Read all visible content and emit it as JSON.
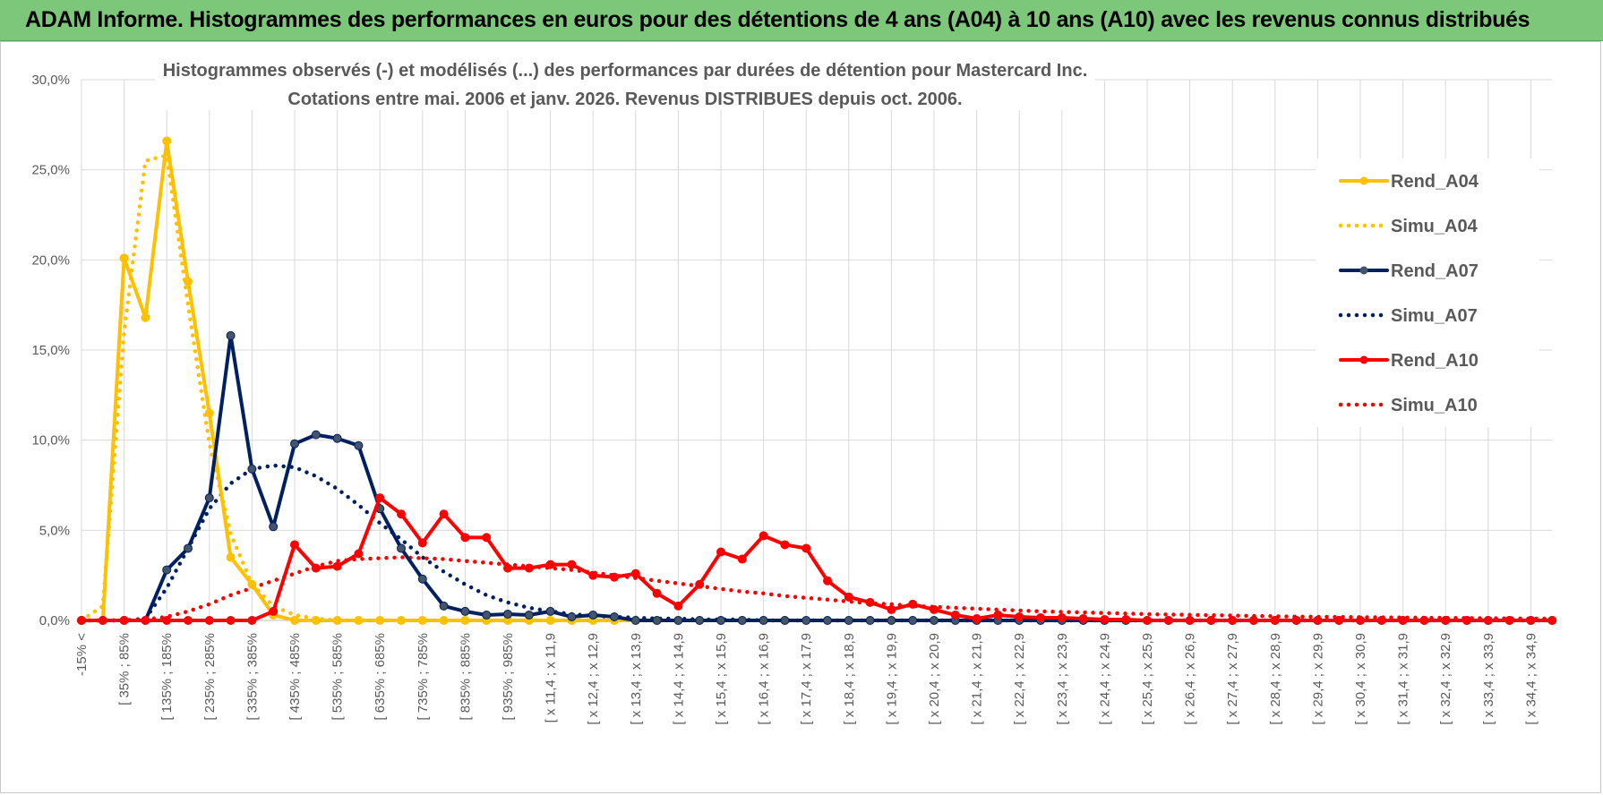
{
  "header": {
    "title": "ADAM Informe. Histogrammes des performances en euros pour des détentions de 4 ans (A04) à 10 ans (A10) avec les revenus connus distribués"
  },
  "chart_data": {
    "type": "line",
    "title_line1": "Histogrammes observés (-) et modélisés (...) des performances par durées de détention pour Mastercard Inc.",
    "title_line2": "Cotations entre mai. 2006 et janv. 2026. Revenus DISTRIBUES depuis oct. 2006.",
    "ylim": [
      0,
      30
    ],
    "y_ticks": [
      "0,0%",
      "5,0%",
      "10,0%",
      "15,0%",
      "20,0%",
      "25,0%",
      "30,0%"
    ],
    "y_tick_values": [
      0,
      5,
      10,
      15,
      20,
      25,
      30
    ],
    "legend_position": "right",
    "x_tick_labels": [
      "-15% <",
      "[ 35% ; 85%",
      "[ 135% ; 185%",
      "[ 235% ; 285%",
      "[ 335% ; 385%",
      "[ 435% ; 485%",
      "[ 535% ; 585%",
      "[ 635% ; 685%",
      "[ 735% ; 785%",
      "[ 835% ; 885%",
      "[ 935% ; 985%",
      "[ x 11,4 ; x 11,9",
      "[ x 12,4 ; x 12,9",
      "[ x 13,4 ; x 13,9",
      "[ x 14,4 ; x 14,9",
      "[ x 15,4 ; x 15,9",
      "[ x 16,4 ; x 16,9",
      "[ x 17,4 ; x 17,9",
      "[ x 18,4 ; x 18,9",
      "[ x 19,4 ; x 19,9",
      "[ x 20,4 ; x 20,9",
      "[ x 21,4 ; x 21,9",
      "[ x 22,4 ; x 22,9",
      "[ x 23,4 ; x 23,9",
      "[ x 24,4 ; x 24,9",
      "[ x 25,4 ; x 25,9",
      "[ x 26,4 ; x 26,9",
      "[ x 27,4 ; x 27,9",
      "[ x 28,4 ; x 28,9",
      "[ x 29,4 ; x 29,9",
      "[ x 30,4 ; x 30,9",
      "[ x 31,4 ; x 31,9",
      "[ x 32,4 ; x 32,9",
      "[ x 33,4 ; x 33,9",
      "[ x 34,4 ; x 34,9"
    ],
    "n_points": 70,
    "series": [
      {
        "name": "Rend_A04",
        "color": "#ffc000",
        "style": "solid",
        "values": [
          0,
          0,
          20.1,
          16.8,
          26.6,
          18.8,
          11.5,
          3.5,
          2.0,
          0.3,
          0,
          0,
          0,
          0,
          0,
          0,
          0,
          0,
          0,
          0,
          0,
          0,
          0,
          0,
          0,
          0,
          0,
          0,
          0,
          0,
          0,
          0,
          0,
          0
        ]
      },
      {
        "name": "Simu_A04",
        "color": "#ffc000",
        "style": "dotted",
        "values": [
          0,
          0.8,
          16,
          25.5,
          25.8,
          17.5,
          9.8,
          4.8,
          2.0,
          0.8,
          0.3,
          0.1,
          0,
          0,
          0,
          0,
          0,
          0,
          0,
          0,
          0,
          0,
          0,
          0,
          0,
          0,
          0,
          0
        ]
      },
      {
        "name": "Rend_A07",
        "color": "#002060",
        "style": "solid",
        "values": [
          0,
          0,
          0,
          0,
          2.8,
          4.0,
          6.8,
          15.8,
          8.4,
          5.2,
          9.8,
          10.3,
          10.1,
          9.7,
          6.2,
          4.0,
          2.3,
          0.8,
          0.5,
          0.3,
          0.35,
          0.3,
          0.5,
          0.2,
          0.3,
          0.2,
          0,
          0,
          0,
          0,
          0,
          0,
          0,
          0,
          0,
          0,
          0,
          0,
          0,
          0,
          0,
          0,
          0,
          0,
          0,
          0,
          0,
          0,
          0,
          0,
          0,
          0,
          0,
          0,
          0,
          0,
          0,
          0,
          0,
          0,
          0,
          0,
          0,
          0,
          0,
          0,
          0,
          0,
          0,
          0
        ]
      },
      {
        "name": "Simu_A07",
        "color": "#002060",
        "style": "dotted",
        "values": [
          0,
          0,
          0,
          0.1,
          1.8,
          4.0,
          6.2,
          7.6,
          8.4,
          8.6,
          8.5,
          8.0,
          7.3,
          6.4,
          5.4,
          4.5,
          3.5,
          2.7,
          2.0,
          1.4,
          1.0,
          0.7,
          0.5,
          0.35,
          0.25,
          0.2,
          0.15,
          0.1,
          0.1,
          0.05,
          0.05,
          0.05,
          0,
          0,
          0,
          0,
          0,
          0,
          0,
          0,
          0,
          0,
          0,
          0,
          0,
          0,
          0,
          0,
          0,
          0,
          0,
          0,
          0,
          0,
          0,
          0,
          0,
          0,
          0,
          0,
          0,
          0,
          0,
          0,
          0,
          0,
          0,
          0,
          0,
          0
        ]
      },
      {
        "name": "Rend_A10",
        "color": "#ff0000",
        "style": "solid",
        "values": [
          0,
          0,
          0,
          0,
          0,
          0,
          0,
          0,
          0,
          0.5,
          4.2,
          2.9,
          3.0,
          3.7,
          6.8,
          5.9,
          4.3,
          5.9,
          4.6,
          4.6,
          2.9,
          2.9,
          3.1,
          3.1,
          2.5,
          2.4,
          2.6,
          1.5,
          0.8,
          2.0,
          3.8,
          3.4,
          4.7,
          4.2,
          4.0,
          2.2,
          1.3,
          1.0,
          0.6,
          0.9,
          0.6,
          0.3,
          0.1,
          0.3,
          0.2,
          0.15,
          0.15,
          0.1,
          0.05,
          0.05,
          0,
          0,
          0,
          0,
          0,
          0,
          0,
          0,
          0,
          0,
          0,
          0,
          0,
          0,
          0,
          0,
          0,
          0,
          0,
          0
        ]
      },
      {
        "name": "Simu_A10",
        "color": "#ff0000",
        "style": "dotted",
        "values": [
          0,
          0,
          0,
          0.05,
          0.2,
          0.5,
          0.9,
          1.4,
          1.8,
          2.2,
          2.6,
          3.0,
          3.3,
          3.4,
          3.45,
          3.5,
          3.45,
          3.4,
          3.3,
          3.2,
          3.1,
          3.0,
          2.9,
          2.8,
          2.65,
          2.5,
          2.35,
          2.2,
          2.05,
          1.9,
          1.75,
          1.6,
          1.5,
          1.35,
          1.25,
          1.15,
          1.05,
          0.95,
          0.9,
          0.8,
          0.75,
          0.7,
          0.65,
          0.6,
          0.55,
          0.5,
          0.47,
          0.44,
          0.41,
          0.38,
          0.35,
          0.33,
          0.31,
          0.29,
          0.27,
          0.25,
          0.23,
          0.21,
          0.2,
          0.19,
          0.18,
          0.17,
          0.16,
          0.15,
          0.14,
          0.13,
          0.12,
          0.11,
          0.1,
          0.1
        ]
      }
    ]
  }
}
